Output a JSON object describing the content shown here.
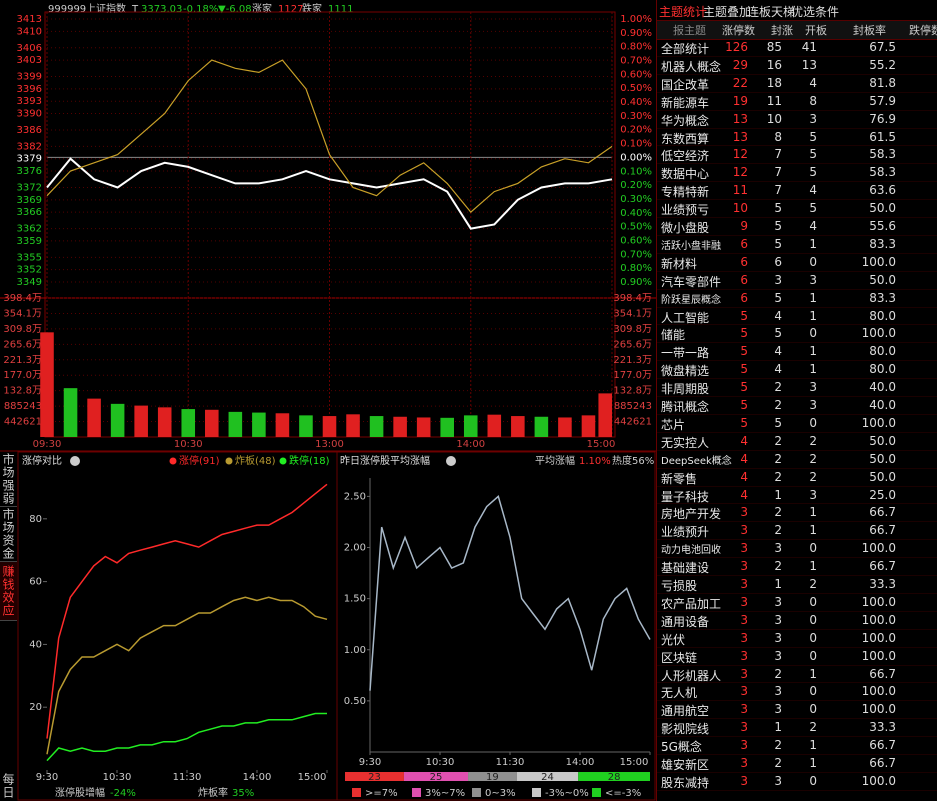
{
  "header": {
    "code": "999999",
    "name": "上证指数",
    "t": "T",
    "price": "3373.03",
    "pct": "-0.18%",
    "chg": "▼-6.08",
    "up_label": "涨家",
    "up": "1127",
    "down_label": "跌家",
    "down": "1111"
  },
  "side_tabs": [
    "市场强弱",
    "市场资金",
    "赚钱效应",
    "每日"
  ],
  "side_active": 2,
  "chart_data": [
    {
      "type": "line",
      "x": [
        0,
        10,
        20,
        30,
        40,
        50,
        60,
        70,
        80,
        90,
        100,
        110,
        120,
        130,
        140,
        150,
        160,
        170,
        180,
        190,
        200,
        210,
        220,
        230,
        240
      ],
      "xlim": [
        0,
        240
      ],
      "xticks": [
        {
          "value": 0,
          "label": "09:30"
        },
        {
          "value": 60,
          "label": "10:30"
        },
        {
          "value": 120,
          "label": "13:00"
        },
        {
          "value": 180,
          "label": "14:00"
        },
        {
          "value": 240,
          "label": "15:00"
        }
      ],
      "ylim": [
        3349,
        3413
      ],
      "yticks": [
        3413,
        3410,
        3406,
        3403,
        3399,
        3396,
        3393,
        3390,
        3386,
        3382,
        3379,
        3376,
        3372,
        3369,
        3366,
        3362,
        3359,
        3355,
        3352,
        3349
      ],
      "y2lim": [
        -0.9,
        1.0
      ],
      "y2ticks": [
        {
          "value": 1.0,
          "label": "1.00%"
        },
        {
          "value": 0.9,
          "label": "0.90%"
        },
        {
          "value": 0.8,
          "label": "0.80%"
        },
        {
          "value": 0.7,
          "label": "0.70%"
        },
        {
          "value": 0.6,
          "label": "0.60%"
        },
        {
          "value": 0.5,
          "label": "0.50%"
        },
        {
          "value": 0.4,
          "label": "0.40%"
        },
        {
          "value": 0.3,
          "label": "0.30%"
        },
        {
          "value": 0.2,
          "label": "0.20%"
        },
        {
          "value": 0.1,
          "label": "0.10%"
        },
        {
          "value": 0,
          "label": "0.00%"
        },
        {
          "value": -0.1,
          "label": "0.10%"
        },
        {
          "value": -0.2,
          "label": "0.20%"
        },
        {
          "value": -0.3,
          "label": "0.30%"
        },
        {
          "value": -0.4,
          "label": "0.40%"
        },
        {
          "value": -0.5,
          "label": "0.50%"
        },
        {
          "value": -0.6,
          "label": "0.60%"
        },
        {
          "value": -0.7,
          "label": "0.70%"
        },
        {
          "value": -0.8,
          "label": "0.80%"
        },
        {
          "value": -0.9,
          "label": "0.90%"
        }
      ],
      "grid": true,
      "series": [
        {
          "color": "#ffffff",
          "values": [
            3372,
            3379,
            3374,
            3372,
            3376,
            3378,
            3377,
            3375,
            3373,
            3373,
            3374,
            3376,
            3374,
            3373,
            3372,
            3373,
            3374,
            3371,
            3362,
            3363,
            3369,
            3372,
            3373,
            3373,
            3374
          ]
        },
        {
          "color": "#c8a028",
          "values": [
            3370,
            3376,
            3378,
            3380,
            3385,
            3390,
            3398,
            3403,
            3401,
            3400,
            3403,
            3396,
            3380,
            3372,
            3370,
            3375,
            3378,
            3373,
            3366,
            3371,
            3373,
            3377,
            3379,
            3378,
            3382
          ]
        }
      ]
    },
    {
      "type": "bar",
      "x": [
        0,
        10,
        20,
        30,
        40,
        50,
        60,
        70,
        80,
        90,
        100,
        110,
        120,
        130,
        140,
        150,
        160,
        170,
        180,
        190,
        200,
        210,
        220,
        230,
        240
      ],
      "xlim": [
        0,
        240
      ],
      "ylim": [
        0,
        3984000
      ],
      "yticks": [
        {
          "value": 3984000,
          "label": "398.4万"
        },
        {
          "value": 3541000,
          "label": "354.1万"
        },
        {
          "value": 3098000,
          "label": "309.8万"
        },
        {
          "value": 2656000,
          "label": "265.6万"
        },
        {
          "value": 2213000,
          "label": "221.3万"
        },
        {
          "value": 1770000,
          "label": "177.0万"
        },
        {
          "value": 1328000,
          "label": "132.8万"
        },
        885243,
        442621
      ],
      "values": [
        3000000,
        1400000,
        1100000,
        950000,
        900000,
        850000,
        800000,
        780000,
        720000,
        700000,
        680000,
        620000,
        600000,
        650000,
        600000,
        580000,
        560000,
        550000,
        620000,
        640000,
        600000,
        580000,
        560000,
        620000,
        1250000
      ],
      "colors": [
        "#e02020",
        "#20c020",
        "#e02020",
        "#20c020",
        "#e02020",
        "#e02020",
        "#20c020",
        "#e02020",
        "#20c020",
        "#20c020",
        "#e02020",
        "#20c020",
        "#e02020",
        "#e02020",
        "#20c020",
        "#e02020",
        "#e02020",
        "#20c020",
        "#20c020",
        "#e02020",
        "#e02020",
        "#20c020",
        "#e02020",
        "#e02020",
        "#e02020"
      ]
    },
    {
      "type": "line",
      "title": "涨停对比",
      "x": [
        0,
        10,
        20,
        30,
        40,
        50,
        60,
        70,
        80,
        90,
        100,
        110,
        120,
        130,
        140,
        150,
        160,
        170,
        180,
        190,
        200,
        210,
        220,
        230,
        240
      ],
      "xlim": [
        0,
        240
      ],
      "xticks": [
        {
          "value": 0,
          "label": "9:30"
        },
        {
          "value": 60,
          "label": "10:30"
        },
        {
          "value": 120,
          "label": "11:30"
        },
        {
          "value": 180,
          "label": "14:00"
        },
        {
          "value": 240,
          "label": "15:00"
        }
      ],
      "ylim": [
        0,
        93
      ],
      "yticks": [
        20,
        40,
        60,
        80
      ],
      "legend": "top-right",
      "series": [
        {
          "name": "涨停(91)",
          "color": "#ff2a2a",
          "values": [
            10,
            42,
            55,
            60,
            65,
            68,
            66,
            69,
            70,
            71,
            72,
            73,
            72,
            71,
            73,
            75,
            76,
            77,
            78,
            78,
            80,
            82,
            85,
            88,
            91
          ]
        },
        {
          "name": "炸板(48)",
          "color": "#b89a30",
          "values": [
            5,
            25,
            32,
            36,
            36,
            38,
            40,
            38,
            42,
            44,
            46,
            46,
            48,
            50,
            50,
            52,
            54,
            55,
            54,
            55,
            54,
            54,
            52,
            49,
            48
          ]
        },
        {
          "name": "跌停(18)",
          "color": "#22ee22",
          "values": [
            3,
            7,
            6,
            7,
            6,
            6,
            7,
            7,
            8,
            8,
            9,
            9,
            10,
            12,
            13,
            14,
            14,
            15,
            15,
            16,
            16,
            16,
            17,
            18,
            18
          ]
        }
      ],
      "footer": {
        "gain_label": "涨停股增幅",
        "gain": "-24%",
        "break_label": "炸板率",
        "break": "35%"
      }
    },
    {
      "type": "line",
      "title": "昨日涨停股平均涨幅",
      "stat_label": "平均涨幅",
      "stat_value": "1.10%",
      "heat": "热度56%",
      "x": [
        0,
        10,
        20,
        30,
        40,
        50,
        60,
        70,
        80,
        90,
        100,
        110,
        120,
        130,
        140,
        150,
        160,
        170,
        180,
        190,
        200,
        210,
        220,
        230,
        240
      ],
      "xlim": [
        0,
        240
      ],
      "xticks": [
        {
          "value": 0,
          "label": "9:30"
        },
        {
          "value": 60,
          "label": "10:30"
        },
        {
          "value": 120,
          "label": "11:30"
        },
        {
          "value": 180,
          "label": "14:00"
        },
        {
          "value": 240,
          "label": "15:00"
        }
      ],
      "ylim": [
        0,
        2.68
      ],
      "yticks": [
        {
          "value": 0.5,
          "label": "0.50"
        },
        {
          "value": 1.0,
          "label": "1.00"
        },
        {
          "value": 1.5,
          "label": "1.50"
        },
        {
          "value": 2.0,
          "label": "2.00"
        },
        {
          "value": 2.5,
          "label": "2.50"
        }
      ],
      "series": [
        {
          "color": "#a8b8c8",
          "values": [
            0.6,
            2.2,
            1.8,
            2.1,
            1.8,
            1.9,
            2.0,
            1.8,
            1.85,
            2.2,
            2.4,
            2.5,
            2.1,
            1.5,
            1.35,
            1.2,
            1.4,
            1.5,
            1.2,
            0.8,
            1.3,
            1.5,
            1.6,
            1.3,
            1.1
          ]
        }
      ]
    },
    {
      "type": "stacked_bar",
      "categories": [
        ">=7%",
        "3%~7%",
        "0~3%",
        "-3%~0%",
        "<=-3%"
      ],
      "values": [
        23,
        25,
        19,
        24,
        28
      ],
      "colors": [
        "#e83030",
        "#e050b0",
        "#909090",
        "#c8c8c8",
        "#20d020"
      ]
    }
  ],
  "theme_panel": {
    "tabs": [
      "主题统计",
      "主题叠加",
      "连板天梯",
      "优选条件"
    ],
    "active": 0,
    "search": "报主题",
    "columns": [
      "涨停数",
      "封涨",
      "开板",
      "封板率",
      "跌停数"
    ],
    "rows": [
      [
        "全部统计",
        "126",
        "85",
        "41",
        "67.5"
      ],
      [
        "机器人概念",
        "29",
        "16",
        "13",
        "55.2"
      ],
      [
        "国企改革",
        "22",
        "18",
        "4",
        "81.8"
      ],
      [
        "新能源车",
        "19",
        "11",
        "8",
        "57.9"
      ],
      [
        "华为概念",
        "13",
        "10",
        "3",
        "76.9"
      ],
      [
        "东数西算",
        "13",
        "8",
        "5",
        "61.5"
      ],
      [
        "低空经济",
        "12",
        "7",
        "5",
        "58.3"
      ],
      [
        "数据中心",
        "12",
        "7",
        "5",
        "58.3"
      ],
      [
        "专精特新",
        "11",
        "7",
        "4",
        "63.6"
      ],
      [
        "业绩预亏",
        "10",
        "5",
        "5",
        "50.0"
      ],
      [
        "微小盘股",
        "9",
        "5",
        "4",
        "55.6"
      ],
      [
        "活跃小盘非融",
        "6",
        "5",
        "1",
        "83.3"
      ],
      [
        "新材料",
        "6",
        "6",
        "0",
        "100.0"
      ],
      [
        "汽车零部件",
        "6",
        "3",
        "3",
        "50.0"
      ],
      [
        "阶跃星辰概念",
        "6",
        "5",
        "1",
        "83.3"
      ],
      [
        "人工智能",
        "5",
        "4",
        "1",
        "80.0"
      ],
      [
        "储能",
        "5",
        "5",
        "0",
        "100.0"
      ],
      [
        "一带一路",
        "5",
        "4",
        "1",
        "80.0"
      ],
      [
        "微盘精选",
        "5",
        "4",
        "1",
        "80.0"
      ],
      [
        "非周期股",
        "5",
        "2",
        "3",
        "40.0"
      ],
      [
        "腾讯概念",
        "5",
        "2",
        "3",
        "40.0"
      ],
      [
        "芯片",
        "5",
        "5",
        "0",
        "100.0"
      ],
      [
        "无实控人",
        "4",
        "2",
        "2",
        "50.0"
      ],
      [
        "DeepSeek概念",
        "4",
        "2",
        "2",
        "50.0"
      ],
      [
        "新零售",
        "4",
        "2",
        "2",
        "50.0"
      ],
      [
        "量子科技",
        "4",
        "1",
        "3",
        "25.0"
      ],
      [
        "房地产开发",
        "3",
        "2",
        "1",
        "66.7"
      ],
      [
        "业绩预升",
        "3",
        "2",
        "1",
        "66.7"
      ],
      [
        "动力电池回收",
        "3",
        "3",
        "0",
        "100.0"
      ],
      [
        "基础建设",
        "3",
        "2",
        "1",
        "66.7"
      ],
      [
        "亏损股",
        "3",
        "1",
        "2",
        "33.3"
      ],
      [
        "农产品加工",
        "3",
        "3",
        "0",
        "100.0"
      ],
      [
        "通用设备",
        "3",
        "3",
        "0",
        "100.0"
      ],
      [
        "光伏",
        "3",
        "3",
        "0",
        "100.0"
      ],
      [
        "区块链",
        "3",
        "3",
        "0",
        "100.0"
      ],
      [
        "人形机器人",
        "3",
        "2",
        "1",
        "66.7"
      ],
      [
        "无人机",
        "3",
        "3",
        "0",
        "100.0"
      ],
      [
        "通用航空",
        "3",
        "3",
        "0",
        "100.0"
      ],
      [
        "影视院线",
        "3",
        "1",
        "2",
        "33.3"
      ],
      [
        "5G概念",
        "3",
        "2",
        "1",
        "66.7"
      ],
      [
        "雄安新区",
        "3",
        "2",
        "1",
        "66.7"
      ],
      [
        "股东减持",
        "3",
        "3",
        "0",
        "100.0"
      ]
    ]
  }
}
